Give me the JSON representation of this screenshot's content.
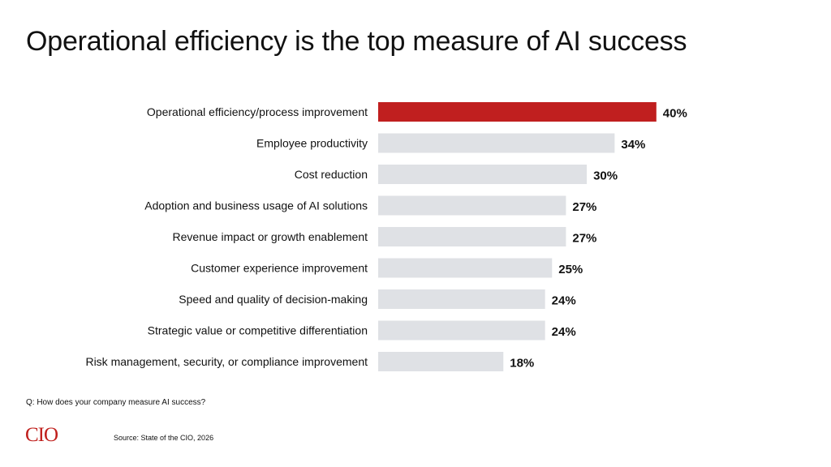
{
  "title": "Operational efficiency is the top measure of AI success",
  "question": "Q: How does your company measure AI success?",
  "source": "Source: State of the CIO, 2026",
  "logo_text": "CIO",
  "colors": {
    "highlight": "#c01f1f",
    "bar": "#dfe1e5",
    "logo": "#c0201d"
  },
  "chart_data": {
    "type": "bar",
    "orientation": "horizontal",
    "categories": [
      "Operational efficiency/process improvement",
      "Employee productivity",
      "Cost reduction",
      "Adoption and business usage of AI solutions",
      "Revenue impact or growth enablement",
      "Customer experience improvement",
      "Speed and quality of decision-making",
      "Strategic value or competitive differentiation",
      "Risk management, security, or compliance improvement"
    ],
    "values": [
      40,
      34,
      30,
      27,
      27,
      25,
      24,
      24,
      18
    ],
    "value_labels": [
      "40%",
      "34%",
      "30%",
      "27%",
      "27%",
      "25%",
      "24%",
      "24%",
      "18%"
    ],
    "unit": "%",
    "highlight_index": 0,
    "grid": false,
    "legend": "none"
  }
}
